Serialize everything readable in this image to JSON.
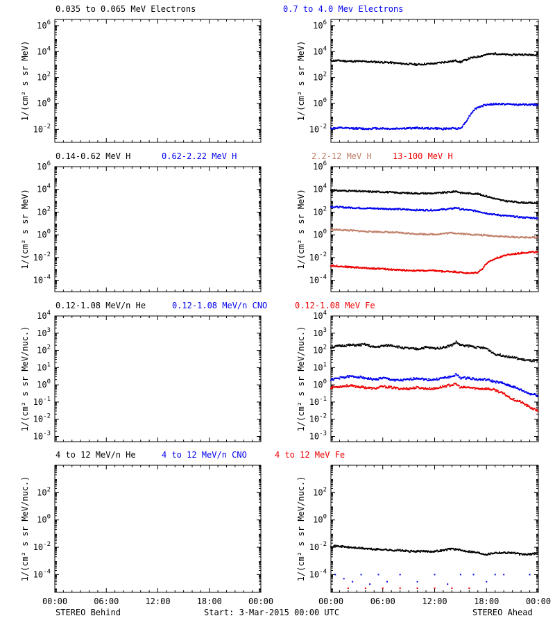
{
  "colors": {
    "black": "#000000",
    "blue": "#0000ee",
    "tan": "#c0806a",
    "red": "#ee0000"
  },
  "footer": {
    "left": "STEREO Behind",
    "center": "Start:  3-Mar-2015 00:00 UTC",
    "right": "STEREO Ahead"
  },
  "chart_data": [
    {
      "type": "scatter",
      "id": "electrons-behind",
      "scale": "log",
      "ylim": [
        0.001,
        3000000
      ],
      "ylabel": "1/(cm² s sr MeV)",
      "xlim": [
        0,
        24
      ],
      "yticks": [
        "10^6",
        "10^4",
        "10^2",
        "10^0",
        "10^-2"
      ],
      "legend": [
        {
          "text": "0.035 to 0.065 MeV Electrons",
          "color": "#000000"
        },
        {
          "text": "0.7 to 4.0 Mev Electrons",
          "color": "#0000ee"
        }
      ],
      "series": []
    },
    {
      "type": "scatter",
      "id": "electrons-ahead",
      "scale": "log",
      "ylim": [
        0.001,
        3000000
      ],
      "ylabel": "1/(cm² s sr MeV)",
      "xlim": [
        0,
        24
      ],
      "yticks": [
        "10^6",
        "10^4",
        "10^2",
        "10^0",
        "10^-2"
      ],
      "series": [
        {
          "color": "#000000",
          "x": [
            0,
            1,
            2,
            3,
            4,
            5,
            6,
            7,
            8,
            9,
            10,
            11,
            12,
            13,
            14,
            14.5,
            15,
            15.3,
            15.6,
            16,
            17,
            18,
            19,
            20,
            21,
            22,
            23,
            24
          ],
          "y": [
            2000,
            2000,
            1800,
            1800,
            1700,
            1600,
            1500,
            1400,
            1200,
            1100,
            1000,
            1100,
            1200,
            1500,
            1800,
            2000,
            1500,
            2000,
            2200,
            3000,
            4000,
            6000,
            7000,
            6000,
            5500,
            6000,
            5500,
            6000
          ]
        },
        {
          "color": "#0000ee",
          "x": [
            0,
            1,
            2,
            3,
            4,
            5,
            6,
            7,
            8,
            9,
            10,
            11,
            12,
            13,
            14,
            15,
            15.5,
            16,
            16.5,
            17,
            18,
            19,
            20,
            21,
            22,
            23,
            24
          ],
          "y": [
            0.012,
            0.013,
            0.012,
            0.012,
            0.011,
            0.012,
            0.012,
            0.011,
            0.012,
            0.012,
            0.013,
            0.012,
            0.012,
            0.011,
            0.012,
            0.012,
            0.03,
            0.1,
            0.3,
            0.5,
            0.8,
            0.9,
            0.9,
            0.85,
            0.8,
            0.8,
            0.8
          ]
        }
      ]
    },
    {
      "type": "scatter",
      "id": "protons-behind",
      "scale": "log",
      "ylim": [
        1e-05,
        1000000
      ],
      "ylabel": "1/(cm² s sr MeV)",
      "xlim": [
        0,
        24
      ],
      "yticks": [
        "10^6",
        "10^4",
        "10^2",
        "10^0",
        "10^-2",
        "10^-4"
      ],
      "legend": [
        {
          "text": "0.14-0.62 MeV H",
          "color": "#000000"
        },
        {
          "text": "0.62-2.22 MeV H",
          "color": "#0000ee"
        },
        {
          "text": "2.2-12 MeV H",
          "color": "#c0806a"
        },
        {
          "text": "13-100 MeV H",
          "color": "#ee0000"
        }
      ],
      "series": []
    },
    {
      "type": "scatter",
      "id": "protons-ahead",
      "scale": "log",
      "ylim": [
        1e-05,
        1000000
      ],
      "ylabel": "1/(cm² s sr MeV)",
      "xlim": [
        0,
        24
      ],
      "yticks": [
        "10^6",
        "10^4",
        "10^2",
        "10^0",
        "10^-2",
        "10^-4"
      ],
      "series": [
        {
          "color": "#000000",
          "x": [
            0,
            2,
            4,
            6,
            8,
            10,
            12,
            14,
            14.5,
            15,
            16,
            17,
            18,
            19,
            20,
            22,
            24
          ],
          "y": [
            8000,
            7500,
            6500,
            6000,
            5000,
            4500,
            4500,
            6000,
            7000,
            5000,
            4500,
            4000,
            2500,
            1500,
            1000,
            700,
            600
          ]
        },
        {
          "color": "#0000ee",
          "x": [
            0,
            2,
            4,
            6,
            8,
            10,
            12,
            14,
            14.5,
            15,
            16,
            17,
            18,
            19,
            20,
            22,
            24
          ],
          "y": [
            300,
            250,
            220,
            200,
            180,
            150,
            150,
            200,
            250,
            180,
            150,
            120,
            80,
            60,
            50,
            35,
            30
          ]
        },
        {
          "color": "#c0806a",
          "x": [
            0,
            2,
            4,
            6,
            8,
            10,
            12,
            14,
            15,
            16,
            17,
            18,
            19,
            20,
            22,
            24
          ],
          "y": [
            3,
            2.5,
            2,
            1.8,
            1.5,
            1.2,
            1.1,
            1.5,
            1.3,
            1.1,
            1,
            0.9,
            0.8,
            0.7,
            0.6,
            0.6
          ]
        },
        {
          "color": "#ee0000",
          "x": [
            0,
            2,
            4,
            6,
            8,
            10,
            12,
            13,
            14,
            15,
            16,
            17,
            17.5,
            18,
            19,
            20,
            21,
            22,
            23,
            24
          ],
          "y": [
            0.002,
            0.0015,
            0.0012,
            0.001,
            0.0008,
            0.0007,
            0.0007,
            0.0006,
            0.0006,
            0.0005,
            0.0004,
            0.0005,
            0.001,
            0.003,
            0.008,
            0.015,
            0.02,
            0.025,
            0.03,
            0.03
          ]
        }
      ]
    },
    {
      "type": "scatter",
      "id": "heavy-behind",
      "scale": "log",
      "ylim": [
        0.0005,
        10000
      ],
      "ylabel": "1/(cm² s sr MeV/nuc.)",
      "xlim": [
        0,
        24
      ],
      "yticks": [
        "10^4",
        "10^3",
        "10^2",
        "10^1",
        "10^0",
        "10^-1",
        "10^-2",
        "10^-3"
      ],
      "legend": [
        {
          "text": "0.12-1.08 MeV/n He",
          "color": "#000000"
        },
        {
          "text": "0.12-1.08 MeV/n CNO",
          "color": "#0000ee"
        },
        {
          "text": "0.12-1.08 MeV Fe",
          "color": "#ee0000"
        }
      ],
      "series": []
    },
    {
      "type": "scatter",
      "id": "heavy-ahead",
      "scale": "log",
      "ylim": [
        0.0005,
        10000
      ],
      "ylabel": "1/(cm² s sr MeV/nuc.)",
      "xlim": [
        0,
        24
      ],
      "yticks": [
        "10^4",
        "10^3",
        "10^2",
        "10^1",
        "10^0",
        "10^-1",
        "10^-2",
        "10^-3"
      ],
      "series": [
        {
          "color": "#000000",
          "x": [
            0,
            1,
            2,
            3,
            4,
            5,
            6,
            7,
            8,
            9,
            10,
            11,
            12,
            13,
            14,
            14.5,
            15,
            16,
            17,
            18,
            19,
            20,
            21,
            22,
            23,
            24
          ],
          "y": [
            150,
            180,
            200,
            200,
            220,
            150,
            180,
            200,
            150,
            130,
            120,
            150,
            130,
            150,
            200,
            300,
            200,
            180,
            150,
            130,
            60,
            50,
            40,
            30,
            25,
            25
          ]
        },
        {
          "color": "#0000ee",
          "x": [
            0,
            1,
            2,
            3,
            4,
            5,
            6,
            7,
            8,
            9,
            10,
            11,
            12,
            13,
            14,
            14.5,
            15,
            16,
            17,
            18,
            19,
            20,
            21,
            22,
            23,
            24
          ],
          "y": [
            2,
            2.5,
            3,
            3,
            2.5,
            2,
            2.5,
            2,
            1.8,
            2,
            2.5,
            2,
            2,
            2.5,
            3,
            4,
            2.5,
            2.5,
            2,
            2,
            1.5,
            1.2,
            0.8,
            0.5,
            0.3,
            0.25
          ]
        },
        {
          "color": "#ee0000",
          "x": [
            0,
            1,
            2,
            3,
            4,
            5,
            6,
            7,
            8,
            9,
            10,
            11,
            12,
            13,
            14,
            14.5,
            15,
            16,
            17,
            18,
            19,
            20,
            21,
            22,
            23,
            24
          ],
          "y": [
            0.7,
            0.8,
            0.9,
            0.8,
            0.7,
            0.6,
            0.8,
            0.7,
            0.6,
            0.6,
            0.7,
            0.6,
            0.6,
            0.8,
            1,
            1.1,
            0.7,
            0.7,
            0.6,
            0.6,
            0.5,
            0.3,
            0.15,
            0.1,
            0.05,
            0.03
          ]
        }
      ]
    },
    {
      "type": "scatter",
      "id": "energetic-behind",
      "scale": "log",
      "ylim": [
        5e-06,
        10000
      ],
      "ylabel": "1/(cm² s sr MeV/nuc.)",
      "xlim": [
        0,
        24
      ],
      "yticks": [
        "10^2",
        "10^0",
        "10^-2",
        "10^-4"
      ],
      "legend": [
        {
          "text": "4 to 12 MeV/n He",
          "color": "#000000"
        },
        {
          "text": "4 to 12 MeV/n CNO",
          "color": "#0000ee"
        },
        {
          "text": "4 to 12 MeV Fe",
          "color": "#ee0000"
        }
      ],
      "series": []
    },
    {
      "type": "scatter",
      "id": "energetic-ahead",
      "scale": "log",
      "ylim": [
        5e-06,
        10000
      ],
      "ylabel": "1/(cm² s sr MeV/nuc.)",
      "xlim": [
        0,
        24
      ],
      "yticks": [
        "10^2",
        "10^0",
        "10^-2",
        "10^-4"
      ],
      "series": [
        {
          "color": "#000000",
          "x": [
            0,
            1,
            2,
            3,
            4,
            5,
            6,
            7,
            8,
            9,
            10,
            11,
            12,
            13,
            14,
            15,
            16,
            17,
            18,
            19,
            20,
            21,
            22,
            23,
            24
          ],
          "y": [
            0.012,
            0.012,
            0.01,
            0.009,
            0.008,
            0.007,
            0.007,
            0.006,
            0.006,
            0.005,
            0.005,
            0.005,
            0.005,
            0.006,
            0.008,
            0.006,
            0.005,
            0.004,
            0.003,
            0.004,
            0.004,
            0.004,
            0.003,
            0.003,
            0.004
          ]
        },
        {
          "color": "#0000ee",
          "x": [
            0.5,
            1.5,
            2.5,
            3.5,
            4.5,
            5.5,
            6.5,
            8,
            10,
            12,
            13.5,
            15,
            16.5,
            18,
            19,
            20,
            23
          ],
          "y": [
            0.0001,
            5e-05,
            3e-05,
            0.0001,
            2e-05,
            0.0001,
            3e-05,
            0.0001,
            3e-05,
            0.0001,
            2e-05,
            0.0001,
            0.0001,
            3e-05,
            0.0001,
            0.0001,
            0.0001
          ]
        },
        {
          "color": "#ee0000",
          "x": [
            2,
            4,
            6,
            8,
            10,
            12,
            14,
            16
          ],
          "y": [
            1e-05,
            1e-05,
            1e-05,
            1e-05,
            1e-05,
            1e-05,
            1e-05,
            1e-05
          ]
        }
      ]
    }
  ],
  "xticks": [
    "00:00",
    "06:00",
    "12:00",
    "18:00",
    "00:00"
  ]
}
